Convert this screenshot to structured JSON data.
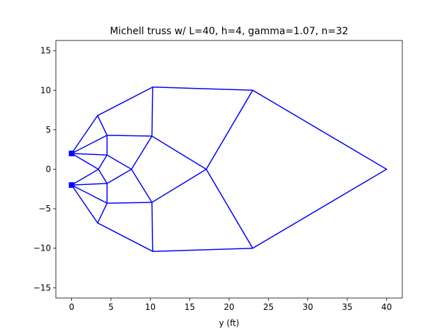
{
  "chart_data": {
    "type": "line",
    "title": "Michell truss w/ L=40, h=4, gamma=1.07, n=32",
    "xlabel": "y (ft)",
    "ylabel": "",
    "xlim": [
      -2,
      42
    ],
    "ylim": [
      -16.3,
      16.3
    ],
    "xticks": [
      0,
      5,
      10,
      15,
      20,
      25,
      30,
      35,
      40
    ],
    "yticks": [
      -15,
      -10,
      -5,
      0,
      5,
      10,
      15
    ],
    "grid": false,
    "line_color": "#0000ff",
    "support_color": "#0000ff",
    "nodes": [
      {
        "id": "s1",
        "x": 0,
        "y": 2
      },
      {
        "id": "s2",
        "x": 0,
        "y": -2
      },
      {
        "id": "a",
        "x": 3.3,
        "y": 6.8
      },
      {
        "id": "b",
        "x": 4.5,
        "y": 4.3
      },
      {
        "id": "c",
        "x": 4.5,
        "y": 1.8
      },
      {
        "id": "d",
        "x": 3.4,
        "y": 0
      },
      {
        "id": "e",
        "x": 4.5,
        "y": -1.8
      },
      {
        "id": "f",
        "x": 4.5,
        "y": -4.3
      },
      {
        "id": "g",
        "x": 3.3,
        "y": -6.8
      },
      {
        "id": "h",
        "x": 7.6,
        "y": 0
      },
      {
        "id": "i",
        "x": 10.2,
        "y": 4.2
      },
      {
        "id": "j",
        "x": 10.2,
        "y": -4.2
      },
      {
        "id": "k",
        "x": 10.3,
        "y": 10.4
      },
      {
        "id": "l",
        "x": 10.3,
        "y": -10.4
      },
      {
        "id": "m",
        "x": 17.1,
        "y": 0
      },
      {
        "id": "n",
        "x": 23.0,
        "y": 10.0
      },
      {
        "id": "o",
        "x": 23.0,
        "y": -10.0
      },
      {
        "id": "p",
        "x": 40.0,
        "y": 0
      }
    ],
    "edges": [
      [
        "s1",
        "a"
      ],
      [
        "s1",
        "b"
      ],
      [
        "s1",
        "c"
      ],
      [
        "s1",
        "d"
      ],
      [
        "a",
        "k"
      ],
      [
        "a",
        "b"
      ],
      [
        "b",
        "c"
      ],
      [
        "b",
        "i"
      ],
      [
        "c",
        "d"
      ],
      [
        "c",
        "h"
      ],
      [
        "d",
        "s2"
      ],
      [
        "d",
        "e"
      ],
      [
        "e",
        "h"
      ],
      [
        "e",
        "f"
      ],
      [
        "e",
        "s2"
      ],
      [
        "s2",
        "f"
      ],
      [
        "s2",
        "g"
      ],
      [
        "f",
        "g"
      ],
      [
        "f",
        "j"
      ],
      [
        "g",
        "l"
      ],
      [
        "h",
        "i"
      ],
      [
        "h",
        "j"
      ],
      [
        "i",
        "k"
      ],
      [
        "i",
        "m"
      ],
      [
        "j",
        "l"
      ],
      [
        "j",
        "m"
      ],
      [
        "k",
        "n"
      ],
      [
        "l",
        "o"
      ],
      [
        "m",
        "n"
      ],
      [
        "m",
        "o"
      ],
      [
        "n",
        "p"
      ],
      [
        "o",
        "p"
      ]
    ],
    "supports": [
      "s1",
      "s2"
    ]
  }
}
